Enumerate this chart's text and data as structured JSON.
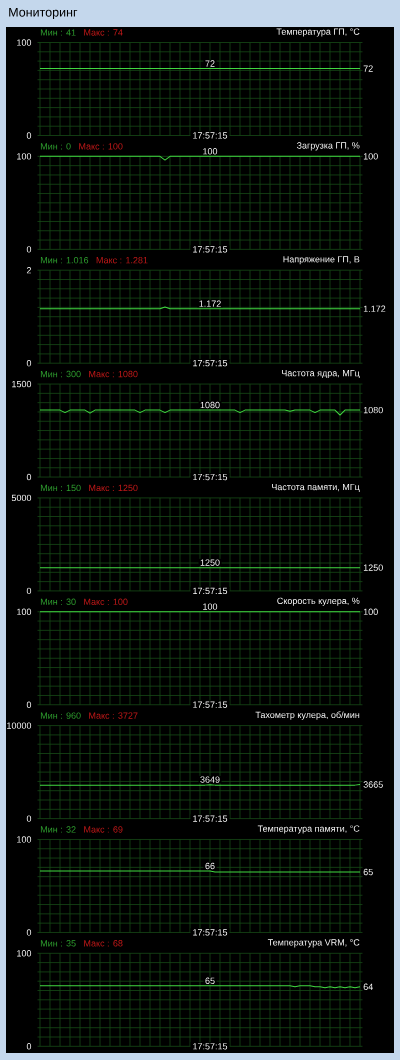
{
  "chart_data": [
    {
      "type": "other",
      "title": "Мониторинг"
    },
    {
      "type": "line",
      "title": "Температура ГП, °C",
      "annotations": [
        "Мин : 41",
        "Макс : 74",
        "17:57:15"
      ],
      "color": "#40d840",
      "grid": true,
      "ylim": [
        0,
        100
      ],
      "yticks": [
        0,
        {
          "value": 10,
          "label": null
        },
        {
          "value": 20,
          "label": null
        },
        {
          "value": 30,
          "label": null
        },
        {
          "value": 40,
          "label": null
        },
        {
          "value": 50,
          "label": null
        },
        {
          "value": 60,
          "label": null
        },
        {
          "value": 70,
          "label": null
        },
        {
          "value": 80,
          "label": null
        },
        {
          "value": 90,
          "label": null
        },
        100
      ],
      "categories": [
        null,
        null,
        null,
        null,
        null,
        null,
        null,
        null,
        null,
        null,
        null,
        null,
        null,
        null,
        null,
        null,
        null,
        null,
        null,
        null,
        null,
        null,
        null,
        null,
        null,
        null,
        null,
        null,
        null,
        null,
        null,
        null,
        null,
        null,
        null,
        null,
        null,
        null,
        null,
        null,
        null,
        null,
        null,
        null,
        null,
        null,
        null,
        null,
        null,
        null,
        null,
        null,
        null,
        null,
        null,
        null,
        null,
        null,
        null,
        null,
        null,
        null,
        null,
        null,
        null
      ],
      "values": [
        72,
        72,
        72,
        72,
        72,
        72,
        72,
        72,
        72,
        72,
        72,
        72,
        72,
        72,
        72,
        72,
        72,
        72,
        72,
        72,
        72,
        72,
        72,
        72,
        72,
        72,
        72,
        72,
        72,
        72,
        72,
        72,
        72,
        72,
        72,
        72,
        72,
        72,
        72,
        72,
        72,
        72,
        72,
        72,
        72,
        72,
        72,
        72,
        72,
        72,
        72,
        72,
        72,
        72,
        72,
        72,
        72,
        72,
        72,
        72,
        72,
        72,
        72,
        72,
        72
      ],
      "value_labels": [
        null,
        null,
        null,
        null,
        null,
        null,
        null,
        null,
        null,
        null,
        null,
        null,
        null,
        null,
        null,
        null,
        null,
        null,
        null,
        null,
        null,
        null,
        null,
        null,
        null,
        null,
        null,
        null,
        null,
        null,
        null,
        null,
        null,
        null,
        "72",
        null,
        null,
        null,
        null,
        null,
        null,
        null,
        null,
        null,
        null,
        null,
        null,
        null,
        null,
        null,
        null,
        null,
        null,
        null,
        null,
        null,
        null,
        null,
        null,
        null,
        null,
        null,
        null,
        null,
        "72"
      ]
    },
    {
      "type": "line",
      "title": "Загрузка ГП, %",
      "annotations": [
        "Мин : 0",
        "Макс : 100",
        "17:57:15"
      ],
      "color": "#40d840",
      "grid": true,
      "ylim": [
        0,
        100
      ],
      "yticks": [
        0,
        {
          "value": 10,
          "label": null
        },
        {
          "value": 20,
          "label": null
        },
        {
          "value": 30,
          "label": null
        },
        {
          "value": 40,
          "label": null
        },
        {
          "value": 50,
          "label": null
        },
        {
          "value": 60,
          "label": null
        },
        {
          "value": 70,
          "label": null
        },
        {
          "value": 80,
          "label": null
        },
        {
          "value": 90,
          "label": null
        },
        100
      ],
      "categories": [
        null,
        null,
        null,
        null,
        null,
        null,
        null,
        null,
        null,
        null,
        null,
        null,
        null,
        null,
        null,
        null,
        null,
        null,
        null,
        null,
        null,
        null,
        null,
        null,
        null,
        null,
        null,
        null,
        null,
        null,
        null,
        null,
        null,
        null,
        null,
        null,
        null,
        null,
        null,
        null,
        null,
        null,
        null,
        null,
        null,
        null,
        null,
        null,
        null,
        null,
        null,
        null,
        null,
        null,
        null,
        null,
        null,
        null,
        null,
        null,
        null,
        null,
        null,
        null,
        null
      ],
      "values": [
        100,
        100,
        100,
        100,
        100,
        100,
        100,
        100,
        100,
        100,
        100,
        100,
        100,
        100,
        100,
        100,
        100,
        100,
        100,
        100,
        100,
        100,
        100,
        100,
        100,
        96,
        100,
        100,
        100,
        100,
        100,
        100,
        100,
        100,
        100,
        100,
        100,
        100,
        100,
        100,
        100,
        100,
        100,
        100,
        100,
        100,
        100,
        100,
        100,
        100,
        100,
        100,
        100,
        100,
        100,
        100,
        100,
        100,
        100,
        100,
        100,
        100,
        100,
        100,
        100
      ],
      "value_labels": [
        null,
        null,
        null,
        null,
        null,
        null,
        null,
        null,
        null,
        null,
        null,
        null,
        null,
        null,
        null,
        null,
        null,
        null,
        null,
        null,
        null,
        null,
        null,
        null,
        null,
        null,
        null,
        null,
        null,
        null,
        null,
        null,
        null,
        null,
        "100",
        null,
        null,
        null,
        null,
        null,
        null,
        null,
        null,
        null,
        null,
        null,
        null,
        null,
        null,
        null,
        null,
        null,
        null,
        null,
        null,
        null,
        null,
        null,
        null,
        null,
        null,
        null,
        null,
        null,
        "100"
      ]
    },
    {
      "type": "line",
      "title": "Напряжение ГП, В",
      "annotations": [
        "Мин : 1.016",
        "Макс : 1.281",
        "17:57:15"
      ],
      "color": "#40d840",
      "grid": true,
      "ylim": [
        0,
        2
      ],
      "yticks": [
        0,
        {
          "value": 0.2,
          "label": null
        },
        {
          "value": 0.4,
          "label": null
        },
        {
          "value": 0.6,
          "label": null
        },
        {
          "value": 0.8,
          "label": null
        },
        {
          "value": 1,
          "label": null
        },
        {
          "value": 1.2,
          "label": null
        },
        {
          "value": 1.4,
          "label": null
        },
        {
          "value": 1.6,
          "label": null
        },
        {
          "value": 1.8,
          "label": null
        },
        2
      ],
      "categories": [
        null,
        null,
        null,
        null,
        null,
        null,
        null,
        null,
        null,
        null,
        null,
        null,
        null,
        null,
        null,
        null,
        null,
        null,
        null,
        null,
        null,
        null,
        null,
        null,
        null,
        null,
        null,
        null,
        null,
        null,
        null,
        null,
        null,
        null,
        null,
        null,
        null,
        null,
        null,
        null,
        null,
        null,
        null,
        null,
        null,
        null,
        null,
        null,
        null,
        null,
        null,
        null,
        null,
        null,
        null,
        null,
        null,
        null,
        null,
        null,
        null,
        null,
        null,
        null,
        null
      ],
      "values": [
        1.17,
        1.17,
        1.17,
        1.17,
        1.17,
        1.17,
        1.17,
        1.17,
        1.17,
        1.17,
        1.17,
        1.17,
        1.17,
        1.17,
        1.17,
        1.17,
        1.17,
        1.17,
        1.17,
        1.17,
        1.17,
        1.17,
        1.17,
        1.17,
        1.17,
        1.21,
        1.17,
        1.17,
        1.17,
        1.17,
        1.17,
        1.17,
        1.17,
        1.17,
        1.172,
        1.17,
        1.17,
        1.17,
        1.17,
        1.17,
        1.17,
        1.17,
        1.17,
        1.17,
        1.17,
        1.17,
        1.17,
        1.17,
        1.17,
        1.17,
        1.17,
        1.17,
        1.17,
        1.17,
        1.17,
        1.17,
        1.17,
        1.17,
        1.17,
        1.17,
        1.17,
        1.17,
        1.17,
        1.17,
        1.172
      ],
      "value_labels": [
        null,
        null,
        null,
        null,
        null,
        null,
        null,
        null,
        null,
        null,
        null,
        null,
        null,
        null,
        null,
        null,
        null,
        null,
        null,
        null,
        null,
        null,
        null,
        null,
        null,
        null,
        null,
        null,
        null,
        null,
        null,
        null,
        null,
        null,
        "1.172",
        null,
        null,
        null,
        null,
        null,
        null,
        null,
        null,
        null,
        null,
        null,
        null,
        null,
        null,
        null,
        null,
        null,
        null,
        null,
        null,
        null,
        null,
        null,
        null,
        null,
        null,
        null,
        null,
        null,
        "1.172"
      ]
    },
    {
      "type": "line",
      "title": "Частота ядра, МГц",
      "annotations": [
        "Мин : 300",
        "Макс : 1080",
        "17:57:15"
      ],
      "color": "#40d840",
      "grid": true,
      "ylim": [
        0,
        1500
      ],
      "yticks": [
        0,
        {
          "value": 150,
          "label": null
        },
        {
          "value": 300,
          "label": null
        },
        {
          "value": 450,
          "label": null
        },
        {
          "value": 600,
          "label": null
        },
        {
          "value": 750,
          "label": null
        },
        {
          "value": 900,
          "label": null
        },
        {
          "value": 1050,
          "label": null
        },
        {
          "value": 1200,
          "label": null
        },
        {
          "value": 1350,
          "label": null
        },
        1500
      ],
      "categories": [
        null,
        null,
        null,
        null,
        null,
        null,
        null,
        null,
        null,
        null,
        null,
        null,
        null,
        null,
        null,
        null,
        null,
        null,
        null,
        null,
        null,
        null,
        null,
        null,
        null,
        null,
        null,
        null,
        null,
        null,
        null,
        null,
        null,
        null,
        null,
        null,
        null,
        null,
        null,
        null,
        null,
        null,
        null,
        null,
        null,
        null,
        null,
        null,
        null,
        null,
        null,
        null,
        null,
        null,
        null,
        null,
        null,
        null,
        null,
        null,
        null,
        null,
        null,
        null,
        null
      ],
      "values": [
        1080,
        1080,
        1080,
        1080,
        1080,
        1040,
        1080,
        1080,
        1080,
        1080,
        1030,
        1080,
        1080,
        1080,
        1080,
        1080,
        1080,
        1080,
        1080,
        1080,
        1040,
        1080,
        1080,
        1080,
        1080,
        1040,
        1080,
        1080,
        1080,
        1080,
        1080,
        1080,
        1080,
        1080,
        1080,
        1080,
        1080,
        1080,
        1080,
        1080,
        1040,
        1080,
        1080,
        1080,
        1080,
        1080,
        1080,
        1080,
        1080,
        1080,
        1060,
        1080,
        1080,
        1080,
        1080,
        1040,
        1080,
        1080,
        1080,
        1080,
        1000,
        1080,
        1080,
        1080,
        1080
      ],
      "value_labels": [
        null,
        null,
        null,
        null,
        null,
        null,
        null,
        null,
        null,
        null,
        null,
        null,
        null,
        null,
        null,
        null,
        null,
        null,
        null,
        null,
        null,
        null,
        null,
        null,
        null,
        null,
        null,
        null,
        null,
        null,
        null,
        null,
        null,
        null,
        "1080",
        null,
        null,
        null,
        null,
        null,
        null,
        null,
        null,
        null,
        null,
        null,
        null,
        null,
        null,
        null,
        null,
        null,
        null,
        null,
        null,
        null,
        null,
        null,
        null,
        null,
        null,
        null,
        null,
        null,
        "1080"
      ]
    },
    {
      "type": "line",
      "title": "Частота памяти, МГц",
      "annotations": [
        "Мин : 150",
        "Макс : 1250",
        "17:57:15"
      ],
      "color": "#40d840",
      "grid": true,
      "ylim": [
        0,
        5000
      ],
      "yticks": [
        0,
        {
          "value": 500,
          "label": null
        },
        {
          "value": 1000,
          "label": null
        },
        {
          "value": 1500,
          "label": null
        },
        {
          "value": 2000,
          "label": null
        },
        {
          "value": 2500,
          "label": null
        },
        {
          "value": 3000,
          "label": null
        },
        {
          "value": 3500,
          "label": null
        },
        {
          "value": 4000,
          "label": null
        },
        {
          "value": 4500,
          "label": null
        },
        5000
      ],
      "categories": [
        null,
        null,
        null,
        null,
        null,
        null,
        null,
        null,
        null,
        null,
        null,
        null,
        null,
        null,
        null,
        null,
        null,
        null,
        null,
        null,
        null,
        null,
        null,
        null,
        null,
        null,
        null,
        null,
        null,
        null,
        null,
        null,
        null,
        null,
        null,
        null,
        null,
        null,
        null,
        null,
        null,
        null,
        null,
        null,
        null,
        null,
        null,
        null,
        null,
        null,
        null,
        null,
        null,
        null,
        null,
        null,
        null,
        null,
        null,
        null,
        null,
        null,
        null,
        null,
        null
      ],
      "values": [
        1250,
        1250,
        1250,
        1250,
        1250,
        1250,
        1250,
        1250,
        1250,
        1250,
        1250,
        1250,
        1250,
        1250,
        1250,
        1250,
        1250,
        1250,
        1250,
        1250,
        1250,
        1250,
        1250,
        1250,
        1250,
        1250,
        1250,
        1250,
        1250,
        1250,
        1250,
        1250,
        1250,
        1250,
        1250,
        1250,
        1250,
        1250,
        1250,
        1250,
        1250,
        1250,
        1250,
        1250,
        1250,
        1250,
        1250,
        1250,
        1250,
        1250,
        1250,
        1250,
        1250,
        1250,
        1250,
        1250,
        1250,
        1250,
        1250,
        1250,
        1250,
        1250,
        1250,
        1250,
        1250
      ],
      "value_labels": [
        null,
        null,
        null,
        null,
        null,
        null,
        null,
        null,
        null,
        null,
        null,
        null,
        null,
        null,
        null,
        null,
        null,
        null,
        null,
        null,
        null,
        null,
        null,
        null,
        null,
        null,
        null,
        null,
        null,
        null,
        null,
        null,
        null,
        null,
        "1250",
        null,
        null,
        null,
        null,
        null,
        null,
        null,
        null,
        null,
        null,
        null,
        null,
        null,
        null,
        null,
        null,
        null,
        null,
        null,
        null,
        null,
        null,
        null,
        null,
        null,
        null,
        null,
        null,
        null,
        "1250"
      ]
    },
    {
      "type": "line",
      "title": "Скорость кулера, %",
      "annotations": [
        "Мин : 30",
        "Макс : 100",
        "17:57:15"
      ],
      "color": "#40d840",
      "grid": true,
      "ylim": [
        0,
        100
      ],
      "yticks": [
        0,
        {
          "value": 10,
          "label": null
        },
        {
          "value": 20,
          "label": null
        },
        {
          "value": 30,
          "label": null
        },
        {
          "value": 40,
          "label": null
        },
        {
          "value": 50,
          "label": null
        },
        {
          "value": 60,
          "label": null
        },
        {
          "value": 70,
          "label": null
        },
        {
          "value": 80,
          "label": null
        },
        {
          "value": 90,
          "label": null
        },
        100
      ],
      "categories": [
        null,
        null,
        null,
        null,
        null,
        null,
        null,
        null,
        null,
        null,
        null,
        null,
        null,
        null,
        null,
        null,
        null,
        null,
        null,
        null,
        null,
        null,
        null,
        null,
        null,
        null,
        null,
        null,
        null,
        null,
        null,
        null,
        null,
        null,
        null,
        null,
        null,
        null,
        null,
        null,
        null,
        null,
        null,
        null,
        null,
        null,
        null,
        null,
        null,
        null,
        null,
        null,
        null,
        null,
        null,
        null,
        null,
        null,
        null,
        null,
        null,
        null,
        null,
        null,
        null
      ],
      "values": [
        100,
        100,
        100,
        100,
        100,
        100,
        100,
        100,
        100,
        100,
        100,
        100,
        100,
        100,
        100,
        100,
        100,
        100,
        100,
        100,
        100,
        100,
        100,
        100,
        100,
        100,
        100,
        100,
        100,
        100,
        100,
        100,
        100,
        100,
        100,
        100,
        100,
        100,
        100,
        100,
        100,
        100,
        100,
        100,
        100,
        100,
        100,
        100,
        100,
        100,
        100,
        100,
        100,
        100,
        100,
        100,
        100,
        100,
        100,
        100,
        100,
        100,
        100,
        100,
        100
      ],
      "value_labels": [
        null,
        null,
        null,
        null,
        null,
        null,
        null,
        null,
        null,
        null,
        null,
        null,
        null,
        null,
        null,
        null,
        null,
        null,
        null,
        null,
        null,
        null,
        null,
        null,
        null,
        null,
        null,
        null,
        null,
        null,
        null,
        null,
        null,
        null,
        "100",
        null,
        null,
        null,
        null,
        null,
        null,
        null,
        null,
        null,
        null,
        null,
        null,
        null,
        null,
        null,
        null,
        null,
        null,
        null,
        null,
        null,
        null,
        null,
        null,
        null,
        null,
        null,
        null,
        null,
        "100"
      ]
    },
    {
      "type": "line",
      "title": "Тахометр кулера, об/мин",
      "annotations": [
        "Мин : 960",
        "Макс : 3727",
        "17:57:15"
      ],
      "color": "#40d840",
      "grid": true,
      "ylim": [
        0,
        10000
      ],
      "yticks": [
        0,
        {
          "value": 1000,
          "label": null
        },
        {
          "value": 2000,
          "label": null
        },
        {
          "value": 3000,
          "label": null
        },
        {
          "value": 4000,
          "label": null
        },
        {
          "value": 5000,
          "label": null
        },
        {
          "value": 6000,
          "label": null
        },
        {
          "value": 7000,
          "label": null
        },
        {
          "value": 8000,
          "label": null
        },
        {
          "value": 9000,
          "label": null
        },
        10000
      ],
      "categories": [
        null,
        null,
        null,
        null,
        null,
        null,
        null,
        null,
        null,
        null,
        null,
        null,
        null,
        null,
        null,
        null,
        null,
        null,
        null,
        null,
        null,
        null,
        null,
        null,
        null,
        null,
        null,
        null,
        null,
        null,
        null,
        null,
        null,
        null,
        null,
        null,
        null,
        null,
        null,
        null,
        null,
        null,
        null,
        null,
        null,
        null,
        null,
        null,
        null,
        null,
        null,
        null,
        null,
        null,
        null,
        null,
        null,
        null,
        null,
        null,
        null,
        null,
        null,
        null,
        null
      ],
      "values": [
        3600,
        3600,
        3600,
        3600,
        3600,
        3600,
        3600,
        3600,
        3600,
        3600,
        3600,
        3600,
        3600,
        3600,
        3600,
        3600,
        3600,
        3600,
        3600,
        3600,
        3600,
        3600,
        3600,
        3600,
        3600,
        3600,
        3600,
        3600,
        3600,
        3600,
        3600,
        3600,
        3600,
        3600,
        3649,
        3600,
        3600,
        3600,
        3600,
        3600,
        3600,
        3600,
        3600,
        3600,
        3600,
        3600,
        3600,
        3600,
        3600,
        3600,
        3600,
        3600,
        3600,
        3600,
        3600,
        3600,
        3600,
        3600,
        3600,
        3600,
        3600,
        3600,
        3600,
        3600,
        3665
      ],
      "value_labels": [
        null,
        null,
        null,
        null,
        null,
        null,
        null,
        null,
        null,
        null,
        null,
        null,
        null,
        null,
        null,
        null,
        null,
        null,
        null,
        null,
        null,
        null,
        null,
        null,
        null,
        null,
        null,
        null,
        null,
        null,
        null,
        null,
        null,
        null,
        "3649",
        null,
        null,
        null,
        null,
        null,
        null,
        null,
        null,
        null,
        null,
        null,
        null,
        null,
        null,
        null,
        null,
        null,
        null,
        null,
        null,
        null,
        null,
        null,
        null,
        null,
        null,
        null,
        null,
        null,
        "3665"
      ]
    },
    {
      "type": "line",
      "title": "Температура памяти, °C",
      "annotations": [
        "Мин : 32",
        "Макс : 69",
        "17:57:15"
      ],
      "color": "#40d840",
      "grid": true,
      "ylim": [
        0,
        100
      ],
      "yticks": [
        0,
        {
          "value": 10,
          "label": null
        },
        {
          "value": 20,
          "label": null
        },
        {
          "value": 30,
          "label": null
        },
        {
          "value": 40,
          "label": null
        },
        {
          "value": 50,
          "label": null
        },
        {
          "value": 60,
          "label": null
        },
        {
          "value": 70,
          "label": null
        },
        {
          "value": 80,
          "label": null
        },
        {
          "value": 90,
          "label": null
        },
        100
      ],
      "categories": [
        null,
        null,
        null,
        null,
        null,
        null,
        null,
        null,
        null,
        null,
        null,
        null,
        null,
        null,
        null,
        null,
        null,
        null,
        null,
        null,
        null,
        null,
        null,
        null,
        null,
        null,
        null,
        null,
        null,
        null,
        null,
        null,
        null,
        null,
        null,
        null,
        null,
        null,
        null,
        null,
        null,
        null,
        null,
        null,
        null,
        null,
        null,
        null,
        null,
        null,
        null,
        null,
        null,
        null,
        null,
        null,
        null,
        null,
        null,
        null,
        null,
        null,
        null,
        null,
        null
      ],
      "values": [
        66,
        66,
        66,
        66,
        66,
        66,
        66,
        66,
        66,
        66,
        66,
        66,
        66,
        66,
        66,
        66,
        66,
        66,
        66,
        66,
        66,
        66,
        66,
        66,
        66,
        66,
        66,
        66,
        66,
        66,
        66,
        66,
        66,
        66,
        66,
        65,
        65,
        65,
        65,
        65,
        65,
        65,
        65,
        65,
        65,
        65,
        65,
        65,
        65,
        65,
        65,
        65,
        65,
        65,
        65,
        65,
        65,
        65,
        65,
        65,
        65,
        65,
        65,
        65,
        65
      ],
      "value_labels": [
        null,
        null,
        null,
        null,
        null,
        null,
        null,
        null,
        null,
        null,
        null,
        null,
        null,
        null,
        null,
        null,
        null,
        null,
        null,
        null,
        null,
        null,
        null,
        null,
        null,
        null,
        null,
        null,
        null,
        null,
        null,
        null,
        null,
        null,
        "66",
        null,
        null,
        null,
        null,
        null,
        null,
        null,
        null,
        null,
        null,
        null,
        null,
        null,
        null,
        null,
        null,
        null,
        null,
        null,
        null,
        null,
        null,
        null,
        null,
        null,
        null,
        null,
        null,
        null,
        "65"
      ]
    },
    {
      "type": "line",
      "title": "Температура VRM, °C",
      "annotations": [
        "Мин : 35",
        "Макс : 68",
        "17:57:15"
      ],
      "color": "#40d840",
      "grid": true,
      "ylim": [
        0,
        100
      ],
      "yticks": [
        0,
        {
          "value": 10,
          "label": null
        },
        {
          "value": 20,
          "label": null
        },
        {
          "value": 30,
          "label": null
        },
        {
          "value": 40,
          "label": null
        },
        {
          "value": 50,
          "label": null
        },
        {
          "value": 60,
          "label": null
        },
        {
          "value": 70,
          "label": null
        },
        {
          "value": 80,
          "label": null
        },
        {
          "value": 90,
          "label": null
        },
        100
      ],
      "categories": [
        null,
        null,
        null,
        null,
        null,
        null,
        null,
        null,
        null,
        null,
        null,
        null,
        null,
        null,
        null,
        null,
        null,
        null,
        null,
        null,
        null,
        null,
        null,
        null,
        null,
        null,
        null,
        null,
        null,
        null,
        null,
        null,
        null,
        null,
        null,
        null,
        null,
        null,
        null,
        null,
        null,
        null,
        null,
        null,
        null,
        null,
        null,
        null,
        null,
        null,
        null,
        null,
        null,
        null,
        null,
        null,
        null,
        null,
        null,
        null,
        null,
        null,
        null,
        null,
        null
      ],
      "values": [
        65,
        65,
        65,
        65,
        65,
        65,
        65,
        65,
        65,
        65,
        65,
        65,
        65,
        65,
        65,
        65,
        65,
        65,
        65,
        65,
        65,
        65,
        65,
        65,
        65,
        65,
        65,
        65,
        65,
        65,
        65,
        65,
        65,
        65,
        65,
        65,
        65,
        65,
        65,
        65,
        65,
        65,
        65,
        65,
        65,
        65,
        65,
        65,
        65,
        65,
        65,
        64,
        65,
        65,
        65,
        64,
        64,
        63,
        64,
        63,
        64,
        63,
        64,
        63,
        64
      ],
      "value_labels": [
        null,
        null,
        null,
        null,
        null,
        null,
        null,
        null,
        null,
        null,
        null,
        null,
        null,
        null,
        null,
        null,
        null,
        null,
        null,
        null,
        null,
        null,
        null,
        null,
        null,
        null,
        null,
        null,
        null,
        null,
        null,
        null,
        null,
        null,
        "65",
        null,
        null,
        null,
        null,
        null,
        null,
        null,
        null,
        null,
        null,
        null,
        null,
        null,
        null,
        null,
        null,
        null,
        null,
        null,
        null,
        null,
        null,
        null,
        null,
        null,
        null,
        null,
        null,
        null,
        "64"
      ]
    }
  ]
}
